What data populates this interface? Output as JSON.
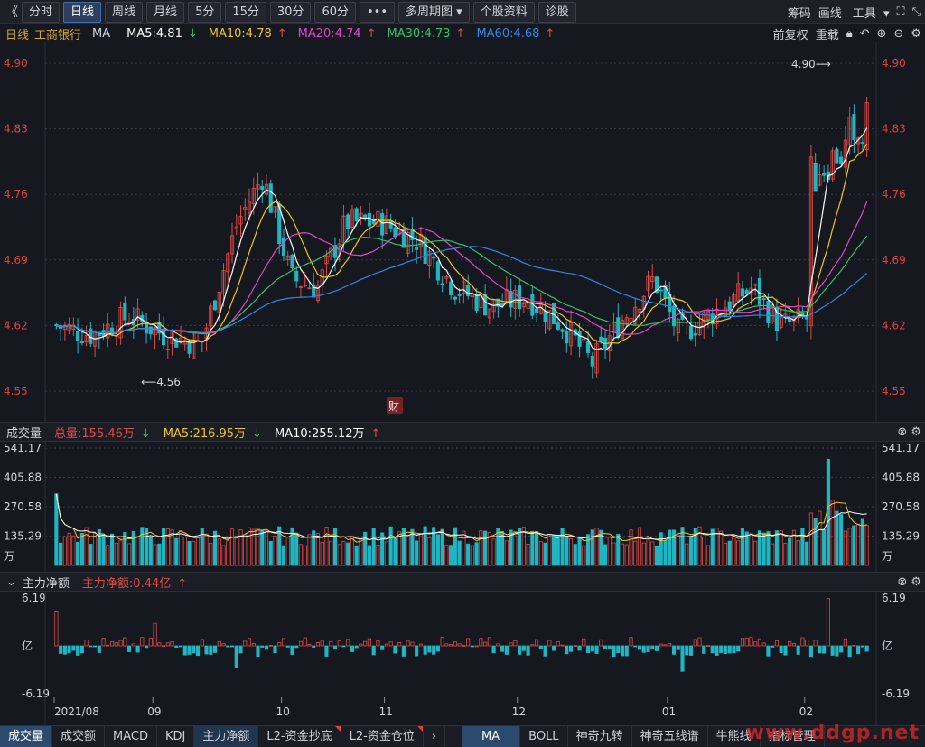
{
  "toolbar": {
    "back_glyph": "《",
    "tabs": [
      "分时",
      "日线",
      "周线",
      "月线",
      "5分",
      "15分",
      "30分",
      "60分"
    ],
    "active_tab": "日线",
    "more_glyph": "•••",
    "multi_period": "多周期图",
    "stock_info": "个股资料",
    "diagnose": "诊股",
    "right": [
      "筹码",
      "画线",
      "工具"
    ]
  },
  "ma_line": {
    "period": "日线",
    "stock": "工商银行",
    "ma": "MA",
    "ma5": "MA5:4.81",
    "ma10": "MA10:4.78",
    "ma20": "MA20:4.74",
    "ma30": "MA30:4.73",
    "ma60": "MA60:4.68",
    "adj": "前复权",
    "reweight": "重载"
  },
  "colors": {
    "up": "#e04a43",
    "down": "#1fb6c3",
    "ma5": "#ffffff",
    "ma10": "#f0c419",
    "ma20": "#e045c8",
    "ma30": "#2ec06a",
    "ma60": "#2e86e8",
    "grid": "#343844",
    "axis_text": "#e0403a"
  },
  "price_axis": [
    "4.90",
    "4.83",
    "4.76",
    "4.69",
    "4.62",
    "4.55"
  ],
  "annotations": {
    "high": "4.90",
    "low": "4.56",
    "cai": "财"
  },
  "volume_header": {
    "label": "成交量",
    "total": "总量:155.46万",
    "ma5": "MA5:216.95万",
    "ma10": "MA10:255.12万"
  },
  "volume_axis": [
    "541.17",
    "405.88",
    "270.58",
    "135.29",
    "万"
  ],
  "flow_header": {
    "label": "主力净额",
    "value": "主力净额:0.44亿"
  },
  "flow_axis": [
    "6.19",
    "亿",
    "-6.19"
  ],
  "date_labels": [
    "2021/08",
    "09",
    "10",
    "11",
    "12",
    "01",
    "02"
  ],
  "bottom_tabs": [
    "成交量",
    "成交额",
    "MACD",
    "KDJ",
    "主力净额",
    "L2-资金抄底",
    "L2-资金仓位"
  ],
  "bottom_active": "成交量",
  "bottom_right_tabs": [
    "MA",
    "BOLL",
    "神奇九转",
    "神奇五线谱",
    "牛熊线",
    "指标管理"
  ],
  "watermark": "www.ddgp.net",
  "chart_data": {
    "type": "candlestick",
    "ylim": [
      4.55,
      4.9
    ],
    "ma_latest": {
      "MA5": 4.81,
      "MA10": 4.78,
      "MA20": 4.74,
      "MA30": 4.73,
      "MA60": 4.68
    },
    "high": 4.9,
    "low": 4.56,
    "volume_max": 541.17,
    "volume_unit": "万",
    "flow_range": [
      -6.19,
      6.19
    ],
    "flow_unit": "亿"
  }
}
